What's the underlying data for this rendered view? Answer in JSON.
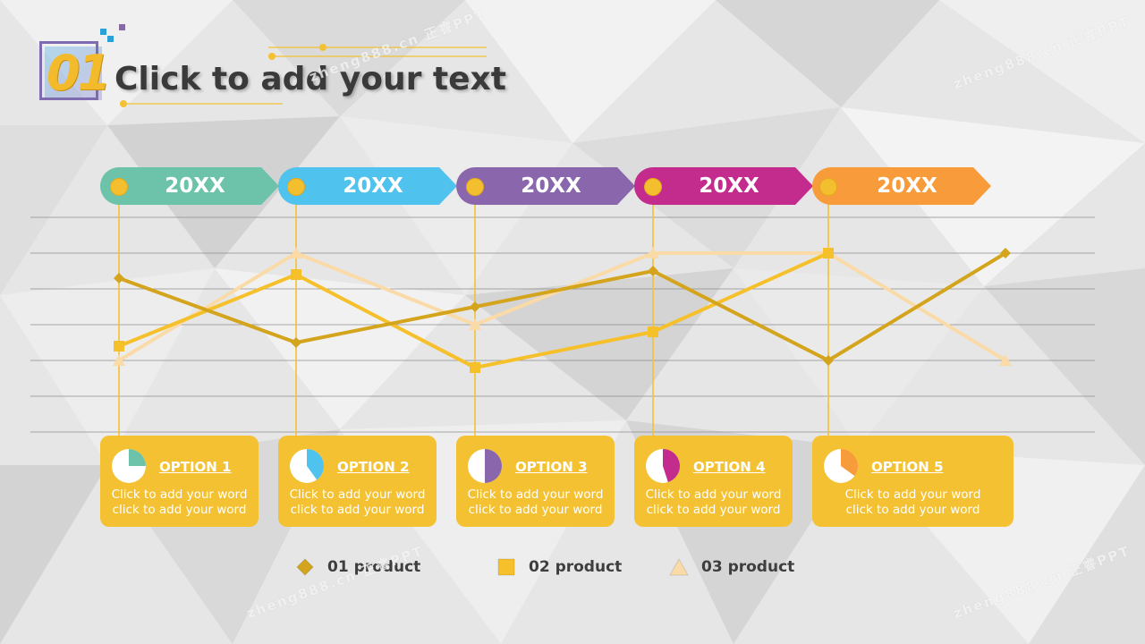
{
  "slide": {
    "number": "01",
    "title": "Click to add your text"
  },
  "watermark": "zheng888.cn 正睿PPT",
  "colors": {
    "teal": "#6cc3aa",
    "blue": "#4fc2ee",
    "purple": "#8a67ad",
    "magenta": "#c32b8c",
    "orange": "#f89b3b",
    "card": "#f3c132",
    "s1": "#d3a41c",
    "s2": "#f6c02a",
    "s3": "#fadba8"
  },
  "years": [
    {
      "label": "20XX",
      "color": "#6cc3aa"
    },
    {
      "label": "20XX",
      "color": "#4fc2ee"
    },
    {
      "label": "20XX",
      "color": "#8a67ad"
    },
    {
      "label": "20XX",
      "color": "#c32b8c"
    },
    {
      "label": "20XX",
      "color": "#f89b3b"
    }
  ],
  "options": [
    {
      "title": "OPTION 1",
      "line1": "Click to add your word",
      "line2": "click to add your word",
      "pie_fraction": 0.25,
      "pie_color": "#6cc3aa"
    },
    {
      "title": "OPTION 2",
      "line1": "Click to add your word",
      "line2": "click to add your word",
      "pie_fraction": 0.4,
      "pie_color": "#4fc2ee"
    },
    {
      "title": "OPTION 3",
      "line1": "Click to add your word",
      "line2": "click to add your word",
      "pie_fraction": 0.5,
      "pie_color": "#8a67ad"
    },
    {
      "title": "OPTION 4",
      "line1": "Click to add your word",
      "line2": "click to add your word",
      "pie_fraction": 0.45,
      "pie_color": "#c32b8c"
    },
    {
      "title": "OPTION 5",
      "line1": "Click to add your word",
      "line2": "click to add your word",
      "pie_fraction": 0.35,
      "pie_color": "#f89b3b"
    }
  ],
  "chart_data": {
    "type": "line",
    "x": [
      1,
      2,
      3,
      4,
      5,
      6
    ],
    "ylim": [
      0,
      6
    ],
    "grid": true,
    "legend_placement": "bottom",
    "series": [
      {
        "name": "01 product",
        "marker": "diamond",
        "color": "#d3a41c",
        "values": [
          4.3,
          2.5,
          3.5,
          4.5,
          2.0,
          5.0
        ]
      },
      {
        "name": "02 product",
        "marker": "square",
        "color": "#f6c02a",
        "values": [
          2.4,
          4.4,
          1.8,
          2.8,
          5.0,
          null
        ]
      },
      {
        "name": "03 product",
        "marker": "triangle",
        "color": "#fadba8",
        "values": [
          2.0,
          5.0,
          3.0,
          5.0,
          5.0,
          2.0
        ]
      }
    ]
  }
}
